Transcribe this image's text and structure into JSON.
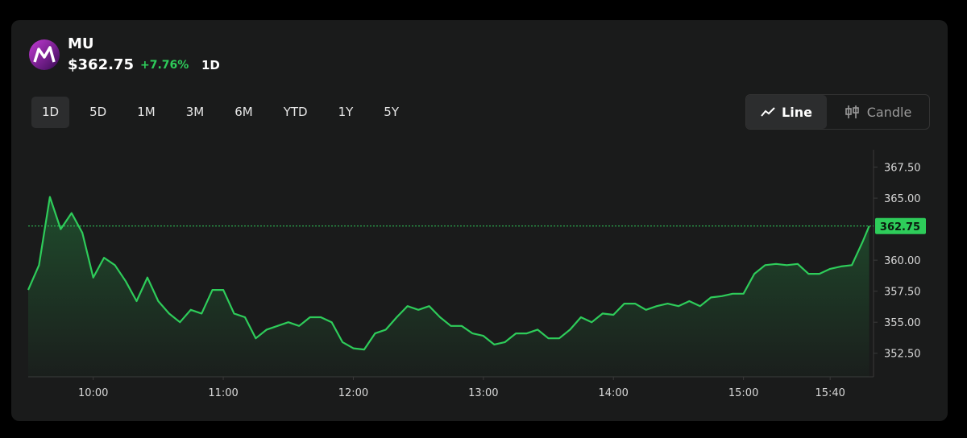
{
  "header": {
    "symbol": "MU",
    "price": "$362.75",
    "change": "+7.76%",
    "period": "1D"
  },
  "ranges": [
    "1D",
    "5D",
    "1M",
    "3M",
    "6M",
    "YTD",
    "1Y",
    "5Y"
  ],
  "chart_types": [
    "Line",
    "Candle"
  ],
  "chart_data": {
    "type": "line",
    "color": "#2ecc5a",
    "x": [
      570,
      575,
      580,
      585,
      590,
      595,
      600,
      605,
      610,
      615,
      620,
      625,
      630,
      635,
      640,
      645,
      650,
      655,
      660,
      665,
      670,
      675,
      680,
      685,
      690,
      695,
      700,
      705,
      710,
      715,
      720,
      725,
      730,
      735,
      740,
      745,
      750,
      755,
      760,
      765,
      770,
      775,
      780,
      785,
      790,
      795,
      800,
      805,
      810,
      815,
      820,
      825,
      830,
      835,
      840,
      845,
      850,
      855,
      860,
      865,
      870,
      875,
      880,
      885,
      890,
      895,
      900,
      905,
      910,
      915,
      920,
      925,
      930,
      935,
      940,
      945,
      950,
      955,
      958
    ],
    "values": [
      357.6,
      359.6,
      365.1,
      362.5,
      363.8,
      362.2,
      358.6,
      360.2,
      359.6,
      358.3,
      356.7,
      358.6,
      356.7,
      355.7,
      355.0,
      356.0,
      355.7,
      357.6,
      357.6,
      355.7,
      355.4,
      353.7,
      354.4,
      354.7,
      355.0,
      354.7,
      355.4,
      355.4,
      355.0,
      353.4,
      352.9,
      352.8,
      354.1,
      354.4,
      355.4,
      356.3,
      356.0,
      356.3,
      355.4,
      354.7,
      354.7,
      354.1,
      353.9,
      353.2,
      353.4,
      354.1,
      354.1,
      354.4,
      353.7,
      353.7,
      354.4,
      355.4,
      355.0,
      355.7,
      355.6,
      356.5,
      356.5,
      356.0,
      356.3,
      356.5,
      356.3,
      356.7,
      356.3,
      357.0,
      357.1,
      357.3,
      357.3,
      358.9,
      359.6,
      359.7,
      359.6,
      359.7,
      358.9,
      358.9,
      359.3,
      359.5,
      359.6,
      361.5,
      362.75
    ],
    "xlim": [
      570,
      960
    ],
    "xticks": [
      {
        "value": 600,
        "label": "10:00"
      },
      {
        "value": 660,
        "label": "11:00"
      },
      {
        "value": 720,
        "label": "12:00"
      },
      {
        "value": 780,
        "label": "13:00"
      },
      {
        "value": 840,
        "label": "14:00"
      },
      {
        "value": 900,
        "label": "15:00"
      },
      {
        "value": 940,
        "label": "15:40"
      }
    ],
    "ylim": [
      350.6,
      368.9
    ],
    "yticks": [
      {
        "value": 352.5,
        "label": "352.50"
      },
      {
        "value": 355,
        "label": "355.00"
      },
      {
        "value": 357.5,
        "label": "357.50"
      },
      {
        "value": 360,
        "label": "360.00"
      },
      {
        "value": 365,
        "label": "365.00"
      },
      {
        "value": 367.5,
        "label": "367.50"
      }
    ],
    "last_price": 362.75
  }
}
